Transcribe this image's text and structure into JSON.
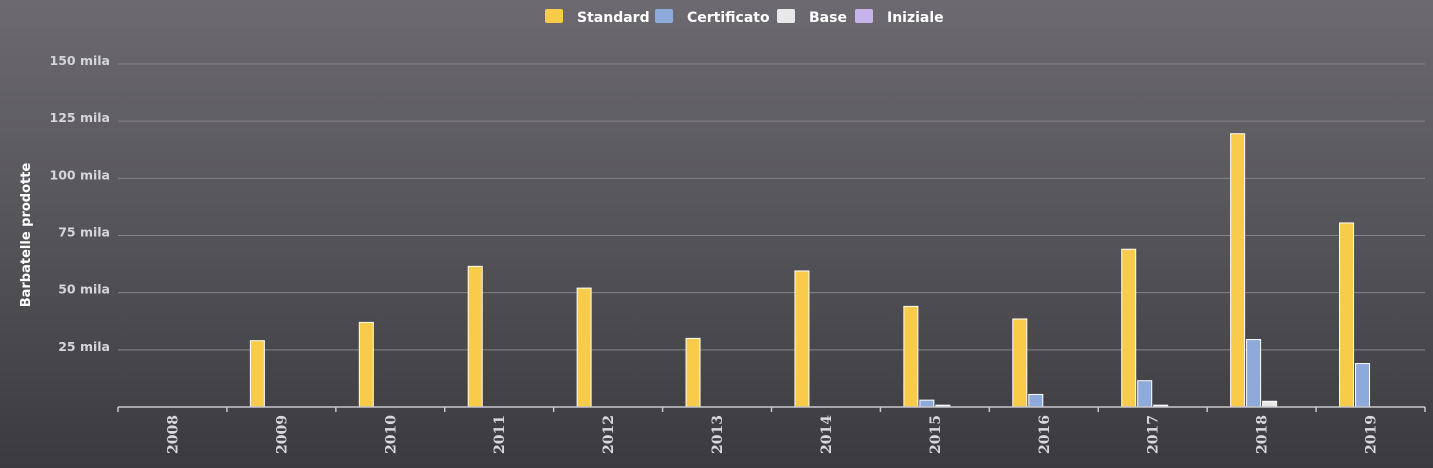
{
  "chart_data": {
    "type": "bar",
    "title": "",
    "xlabel": "",
    "ylabel": "Barbatelle prodotte",
    "ylim": [
      0,
      150000
    ],
    "y_ticks": [
      {
        "value": 25000,
        "label": "25 mila"
      },
      {
        "value": 50000,
        "label": "50 mila"
      },
      {
        "value": 75000,
        "label": "75 mila"
      },
      {
        "value": 100000,
        "label": "100 mila"
      },
      {
        "value": 125000,
        "label": "125 mila"
      },
      {
        "value": 150000,
        "label": "150 mila"
      }
    ],
    "grid": true,
    "legend_position": "top-center",
    "categories": [
      "2008",
      "2009",
      "2010",
      "2011",
      "2012",
      "2013",
      "2014",
      "2015",
      "2016",
      "2017",
      "2018",
      "2019"
    ],
    "series": [
      {
        "name": "Standard",
        "color": "#f9cb4a",
        "values": [
          0,
          29000,
          37000,
          61500,
          52000,
          30000,
          59500,
          44000,
          38500,
          69000,
          119500,
          80500
        ]
      },
      {
        "name": "Certificato",
        "color": "#8eaadb",
        "values": [
          0,
          0,
          0,
          0,
          0,
          0,
          0,
          3000,
          5500,
          11500,
          29500,
          19000
        ]
      },
      {
        "name": "Base",
        "color": "#e8e8e8",
        "values": [
          0,
          0,
          0,
          0,
          0,
          0,
          0,
          800,
          0,
          800,
          2500,
          0
        ]
      },
      {
        "name": "Iniziale",
        "color": "#c9b3ec",
        "values": [
          0,
          0,
          0,
          0,
          0,
          0,
          0,
          0,
          0,
          0,
          0,
          0
        ]
      }
    ]
  }
}
